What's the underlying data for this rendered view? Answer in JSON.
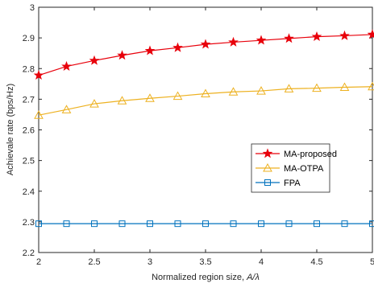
{
  "chart_data": {
    "type": "line",
    "x": [
      2,
      2.25,
      2.5,
      2.75,
      3,
      3.25,
      3.5,
      3.75,
      4,
      4.25,
      4.5,
      4.75,
      5
    ],
    "series": [
      {
        "name": "MA-proposed",
        "color": "#e8000b",
        "marker": "star",
        "values": [
          2.778,
          2.807,
          2.826,
          2.843,
          2.858,
          2.868,
          2.879,
          2.886,
          2.892,
          2.898,
          2.904,
          2.907,
          2.911
        ]
      },
      {
        "name": "MA-OTPA",
        "color": "#edb120",
        "marker": "triangle",
        "values": [
          2.648,
          2.666,
          2.685,
          2.695,
          2.703,
          2.71,
          2.718,
          2.724,
          2.727,
          2.734,
          2.736,
          2.739,
          2.741
        ]
      },
      {
        "name": "FPA",
        "color": "#0072bd",
        "marker": "square",
        "values": [
          2.294,
          2.294,
          2.294,
          2.294,
          2.294,
          2.294,
          2.294,
          2.294,
          2.294,
          2.294,
          2.294,
          2.294,
          2.294
        ]
      }
    ],
    "xlabel_text": "Normalized region size, ",
    "xlabel_math": "A/λ",
    "ylabel": "Achievale rate (bps/Hz)",
    "xlim": [
      2,
      5
    ],
    "ylim": [
      2.2,
      3.0
    ],
    "xticks": [
      "2",
      "2.5",
      "3",
      "3.5",
      "4",
      "4.5",
      "5"
    ],
    "yticks": [
      "2.2",
      "2.3",
      "2.4",
      "2.5",
      "2.6",
      "2.7",
      "2.8",
      "2.9",
      "3"
    ],
    "grid": false,
    "legend_position": "center-right"
  }
}
